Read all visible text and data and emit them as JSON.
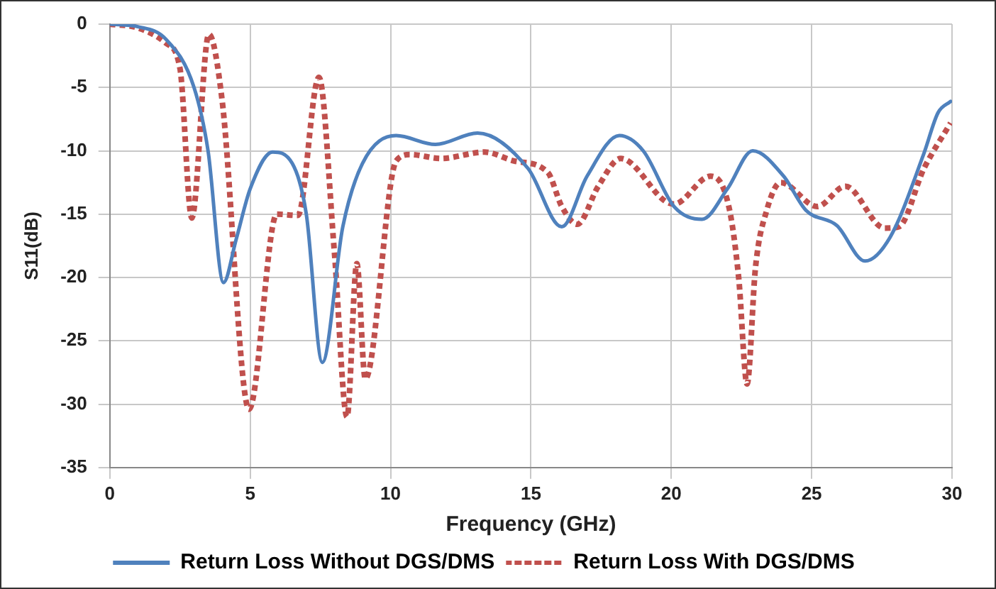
{
  "chart_data": {
    "type": "line",
    "xlabel": "Frequency (GHz)",
    "ylabel": "S11(dB)",
    "xlim": [
      0,
      30
    ],
    "xticks": [
      0,
      5,
      10,
      15,
      20,
      25,
      30
    ],
    "ylim": [
      -35,
      0
    ],
    "yticks": [
      -35,
      -30,
      -25,
      -20,
      -15,
      -10,
      -5,
      0
    ],
    "grid": true,
    "legend": "bottom",
    "marker": "none",
    "series": [
      {
        "name": "Return Loss Without DGS/DMS",
        "color": "#4f81bd",
        "line_style": "solid",
        "x": [
          0,
          1,
          2,
          3,
          3.5,
          4.05,
          4.5,
          5,
          5.8,
          6.5,
          7,
          7.57,
          8.3,
          9,
          10.2,
          11.6,
          13.1,
          14.9,
          16.1,
          17,
          18.15,
          19,
          20.1,
          21.1,
          22,
          22.9,
          24,
          24.8,
          25.9,
          26.9,
          27.8,
          29,
          29.5,
          29.95
        ],
        "values": [
          0,
          -0.2,
          -1.2,
          -5,
          -10,
          -20.4,
          -17,
          -13,
          -10.1,
          -11,
          -15,
          -26.7,
          -16,
          -11,
          -8.8,
          -9.5,
          -8.6,
          -11.4,
          -16,
          -12,
          -8.8,
          -10,
          -14.4,
          -15.4,
          -13,
          -10,
          -12,
          -14.7,
          -15.9,
          -18.7,
          -16.8,
          -10.2,
          -7,
          -6.1
        ]
      },
      {
        "name": "Return Loss With DGS/DMS",
        "color": "#c0504d",
        "line_style": "dotted",
        "x": [
          0,
          1,
          2,
          2.5,
          2.92,
          3.53,
          4,
          4.96,
          5.95,
          6.7,
          7.45,
          8,
          8.45,
          8.8,
          9.1,
          10.2,
          10.7,
          11.8,
          13.35,
          14.4,
          15.6,
          16.1,
          16.65,
          17.4,
          18.2,
          19.8,
          20.1,
          21.4,
          22.05,
          22.4,
          22.7,
          23,
          23.4,
          23.9,
          25.2,
          26.2,
          27.6,
          28.1,
          29,
          29.95
        ],
        "values": [
          0,
          -0.3,
          -1.5,
          -3.5,
          -15.3,
          -0.8,
          -6,
          -30.4,
          -15,
          -15.1,
          -4.2,
          -18,
          -31,
          -18.9,
          -28,
          -10.8,
          -10.3,
          -10.6,
          -10.1,
          -10.8,
          -11.7,
          -14.4,
          -15.8,
          -12.8,
          -10.6,
          -14,
          -14.2,
          -12,
          -14.4,
          -20,
          -28.4,
          -19.2,
          -14.7,
          -12.5,
          -14.4,
          -12.8,
          -16.1,
          -16,
          -11.4,
          -7.8
        ]
      }
    ]
  }
}
